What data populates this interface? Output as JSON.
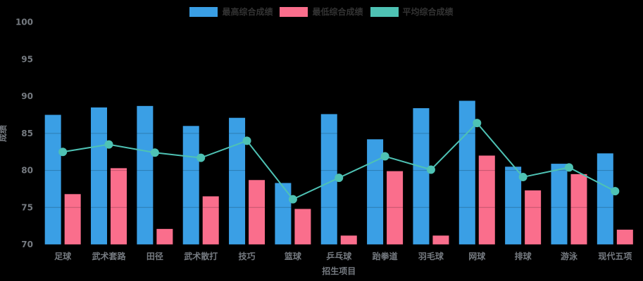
{
  "chart_data": {
    "type": "bar",
    "title": "",
    "categories": [
      "足球",
      "武术套路",
      "田径",
      "武术散打",
      "技巧",
      "篮球",
      "乒乓球",
      "跆拳道",
      "羽毛球",
      "网球",
      "排球",
      "游泳",
      "现代五项"
    ],
    "series": [
      {
        "name": "最高综合成绩",
        "type": "bar",
        "color": "#3A9FE5",
        "values": [
          87.5,
          88.5,
          88.7,
          86.0,
          87.1,
          78.3,
          87.6,
          84.2,
          88.4,
          89.4,
          80.5,
          80.9,
          82.3
        ]
      },
      {
        "name": "最低综合成绩",
        "type": "bar",
        "color": "#FA6E8C",
        "values": [
          76.8,
          80.3,
          72.1,
          76.5,
          78.7,
          74.8,
          71.2,
          79.9,
          71.2,
          82.0,
          77.3,
          79.5,
          72.0
        ]
      },
      {
        "name": "平均综合成绩",
        "type": "line",
        "color": "#4EC2B4",
        "values": [
          82.5,
          83.5,
          82.4,
          81.7,
          84.0,
          76.1,
          79.0,
          81.9,
          80.1,
          86.4,
          79.1,
          80.4,
          77.2
        ]
      }
    ],
    "xlabel": "招生项目",
    "ylabel": "成绩",
    "ylim": [
      70,
      100
    ],
    "yticks": [
      70,
      75,
      80,
      85,
      90,
      95,
      100
    ],
    "grid": true,
    "legend_position": "top",
    "background": "#000000",
    "axis_label_color": "#757a80",
    "legend_text_color": "#333333"
  }
}
